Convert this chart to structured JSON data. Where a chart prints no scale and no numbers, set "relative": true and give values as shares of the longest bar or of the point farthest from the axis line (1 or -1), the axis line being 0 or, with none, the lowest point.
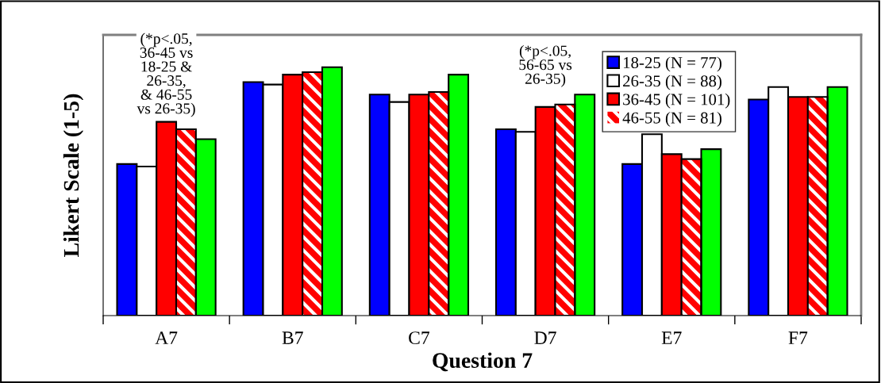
{
  "chart_data": {
    "type": "bar",
    "relative": true,
    "xlabel": "Question 7",
    "ylabel": "Likert Scale (1-5)",
    "categories": [
      "A7",
      "B7",
      "C7",
      "D7",
      "E7",
      "F7"
    ],
    "series": [
      {
        "name": "18-25 (N = 77)",
        "color": "#0000ff",
        "values": [
          0.61,
          0.94,
          0.89,
          0.75,
          0.61,
          0.87
        ]
      },
      {
        "name": "26-35 (N = 88)",
        "color": "#ffffff",
        "values": [
          0.6,
          0.93,
          0.86,
          0.74,
          0.73,
          0.92
        ]
      },
      {
        "name": "36-45 (N = 101)",
        "color": "#ff0000",
        "values": [
          0.78,
          0.97,
          0.89,
          0.84,
          0.65,
          0.88
        ]
      },
      {
        "name": "46-55 (N = 81)",
        "color": "#ff0000",
        "values": [
          0.75,
          0.98,
          0.9,
          0.85,
          0.63,
          0.88
        ]
      },
      {
        "color": "#00ff00",
        "values": [
          0.71,
          1.0,
          0.97,
          0.89,
          0.67,
          0.92
        ]
      }
    ],
    "annotations": [
      "(*p<.05,\n36-45 vs\n18-25 &\n26-35,\n& 46-55\nvs 26-35)",
      "(*p<.05,\n56-65 vs\n26-35)"
    ],
    "legend": "top right",
    "grid": false
  }
}
